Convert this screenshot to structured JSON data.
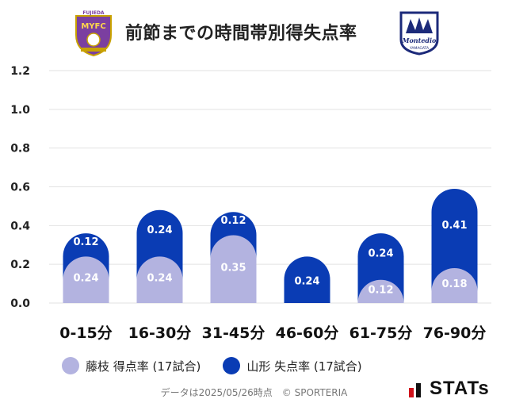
{
  "header": {
    "title": "前節までの時間帯別得失点率",
    "left_logo_text": "FUJIEDA MYFC",
    "right_logo_text": "Montedio YAMAGATA"
  },
  "legend": {
    "series1_label": "藤枝 得点率 (17試合)",
    "series2_label": "山形 失点率 (17試合)"
  },
  "footer": {
    "note": "データは2025/05/26時点　© SPORTERIA",
    "brand": "STATs"
  },
  "colors": {
    "series1": "#b3b3e0",
    "series2": "#0a3cb4",
    "grid": "#e2e2e2",
    "axis_text": "#222222"
  },
  "chart_data": {
    "type": "bar",
    "title": "前節までの時間帯別得失点率",
    "categories": [
      "0-15分",
      "16-30分",
      "31-45分",
      "46-60分",
      "61-75分",
      "76-90分"
    ],
    "series": [
      {
        "name": "藤枝 得点率 (17試合)",
        "values": [
          0.24,
          0.24,
          0.35,
          0.0,
          0.12,
          0.18
        ]
      },
      {
        "name": "山形 失点率 (17試合)",
        "values": [
          0.12,
          0.24,
          0.12,
          0.24,
          0.24,
          0.41
        ]
      }
    ],
    "ylim": [
      0,
      1.2
    ],
    "yticks": [
      "0.0",
      "0.2",
      "0.4",
      "0.6",
      "0.8",
      "1.0",
      "1.2"
    ],
    "xlabel": "",
    "ylabel": "",
    "grid": true,
    "legend_position": "bottom"
  }
}
